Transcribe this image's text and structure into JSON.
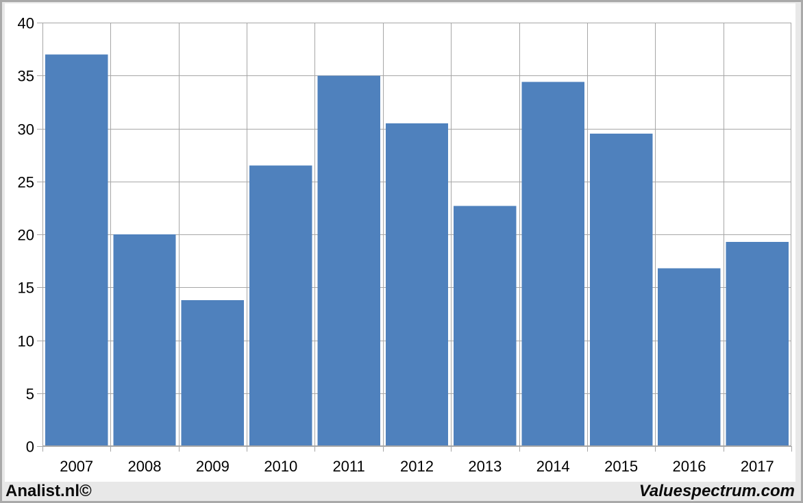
{
  "chart_data": {
    "type": "bar",
    "title": "",
    "categories": [
      "2007",
      "2008",
      "2009",
      "2010",
      "2011",
      "2012",
      "2013",
      "2014",
      "2015",
      "2016",
      "2017"
    ],
    "values": [
      37.0,
      20.0,
      13.8,
      26.5,
      35.0,
      30.5,
      22.7,
      34.4,
      29.5,
      16.8,
      19.3
    ],
    "yticks": [
      0,
      5,
      10,
      15,
      20,
      25,
      30,
      35,
      40
    ],
    "ylim": [
      0,
      40
    ],
    "xlabel": "",
    "ylabel": "",
    "grid": "on",
    "legend": "none",
    "bar_color": "#4f81bd",
    "gridline_color": "#a6a6a6",
    "plot_border_color": "#a6a6a6",
    "tick_color": "#a6a6a6",
    "axis_text_color": "#000000",
    "plot_background": "#ffffff"
  },
  "footer": {
    "left_credit": "Analist.nl©",
    "right_credit": "Valuespectrum.com"
  }
}
